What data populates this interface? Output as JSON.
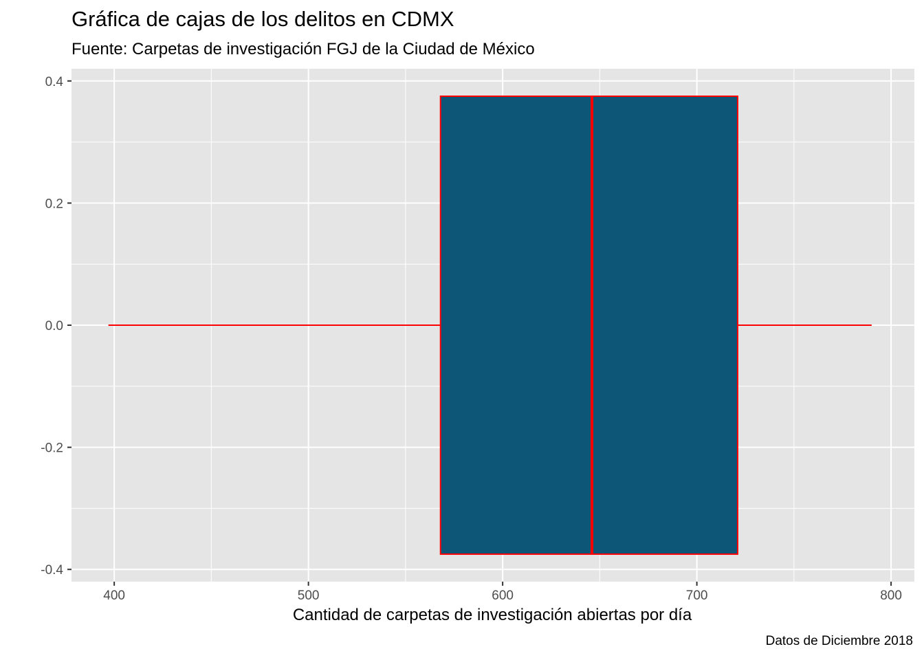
{
  "chart_data": {
    "type": "boxplot",
    "title": "Gráfica de cajas de los delitos en CDMX",
    "subtitle": "Fuente: Carpetas de investigación FGJ de la Ciudad de México",
    "xlabel": "Cantidad de carpetas de investigación abiertas por día",
    "ylabel": "",
    "caption": "Datos de Diciembre 2018",
    "xlim": [
      378,
      812
    ],
    "ylim": [
      -0.42,
      0.42
    ],
    "x_ticks": [
      400,
      500,
      600,
      700,
      800
    ],
    "x_tick_labels": [
      "400",
      "500",
      "600",
      "700",
      "800"
    ],
    "y_ticks": [
      -0.4,
      -0.2,
      0.0,
      0.2,
      0.4
    ],
    "y_tick_labels": [
      "-0.4",
      "-0.2",
      "0.0",
      "0.2",
      "0.4"
    ],
    "grid": true,
    "box": {
      "min": 397,
      "q1": 568,
      "median": 646,
      "q3": 721,
      "max": 790,
      "y_center": 0.0,
      "half_width": 0.375,
      "fill": "#0e5677",
      "outline": "#ff0000"
    },
    "panel_background": "#e5e5e5",
    "grid_color": "#ffffff"
  }
}
